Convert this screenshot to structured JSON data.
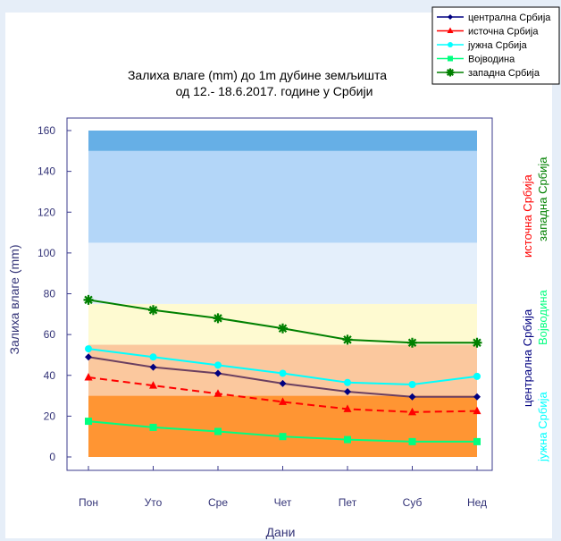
{
  "chart_data": {
    "type": "line",
    "title_lines": [
      "Залиха влаге (mm) до 1m дубине земљишта",
      "од 12.- 18.6.2017. године у Србији"
    ],
    "xlabel": "Дани",
    "ylabel": "Залиха влаге (mm)",
    "categories": [
      "Пон",
      "Уто",
      "Сре",
      "Чет",
      "Пет",
      "Суб",
      "Нед"
    ],
    "ylim": [
      0,
      160
    ],
    "yticks": [
      0,
      20,
      40,
      60,
      80,
      100,
      120,
      140,
      160
    ],
    "grid": false,
    "legend_position": "top-right",
    "bands": [
      {
        "from": 0,
        "to": 30,
        "color": "#ff9533"
      },
      {
        "from": 30,
        "to": 55,
        "color": "#fbc89e"
      },
      {
        "from": 55,
        "to": 75,
        "color": "#fefad1"
      },
      {
        "from": 75,
        "to": 105,
        "color": "#e4effb"
      },
      {
        "from": 105,
        "to": 150,
        "color": "#b3d6f8"
      },
      {
        "from": 150,
        "to": 160,
        "color": "#66afe6"
      }
    ],
    "series": [
      {
        "name": "централна Србија",
        "color": "#000080",
        "line_color": "#6b3f60",
        "marker": "diamond",
        "dash": false,
        "values": [
          49,
          44,
          41,
          36,
          32,
          29.5,
          29.5
        ]
      },
      {
        "name": "источна Србија",
        "color": "#ff0000",
        "line_color": "#ff0000",
        "marker": "triangle",
        "dash": true,
        "values": [
          39,
          35,
          31,
          27,
          23.5,
          22,
          22.5
        ]
      },
      {
        "name": "јужна Србија",
        "color": "#00ffff",
        "line_color": "#00ffff",
        "marker": "circle",
        "dash": false,
        "values": [
          53,
          49,
          45,
          41,
          36.5,
          35.5,
          39.5
        ]
      },
      {
        "name": "Војводина",
        "color": "#00ff7f",
        "line_color": "#00ff7f",
        "marker": "square",
        "dash": false,
        "values": [
          17.5,
          14.5,
          12.5,
          10,
          8.5,
          7.5,
          7.5
        ]
      },
      {
        "name": "западна Србија",
        "color": "#008000",
        "line_color": "#008000",
        "marker": "star",
        "dash": false,
        "values": [
          77,
          72,
          68,
          63,
          57.5,
          56,
          56
        ]
      }
    ],
    "side_labels": [
      {
        "text": "централна Србија",
        "color": "#000080"
      },
      {
        "text": "источна Србија",
        "color": "#ff0000"
      },
      {
        "text": "јужна Србија",
        "color": "#00ffff"
      },
      {
        "text": "Војводина",
        "color": "#00ff7f"
      },
      {
        "text": "западна Србија",
        "color": "#008000"
      }
    ]
  }
}
